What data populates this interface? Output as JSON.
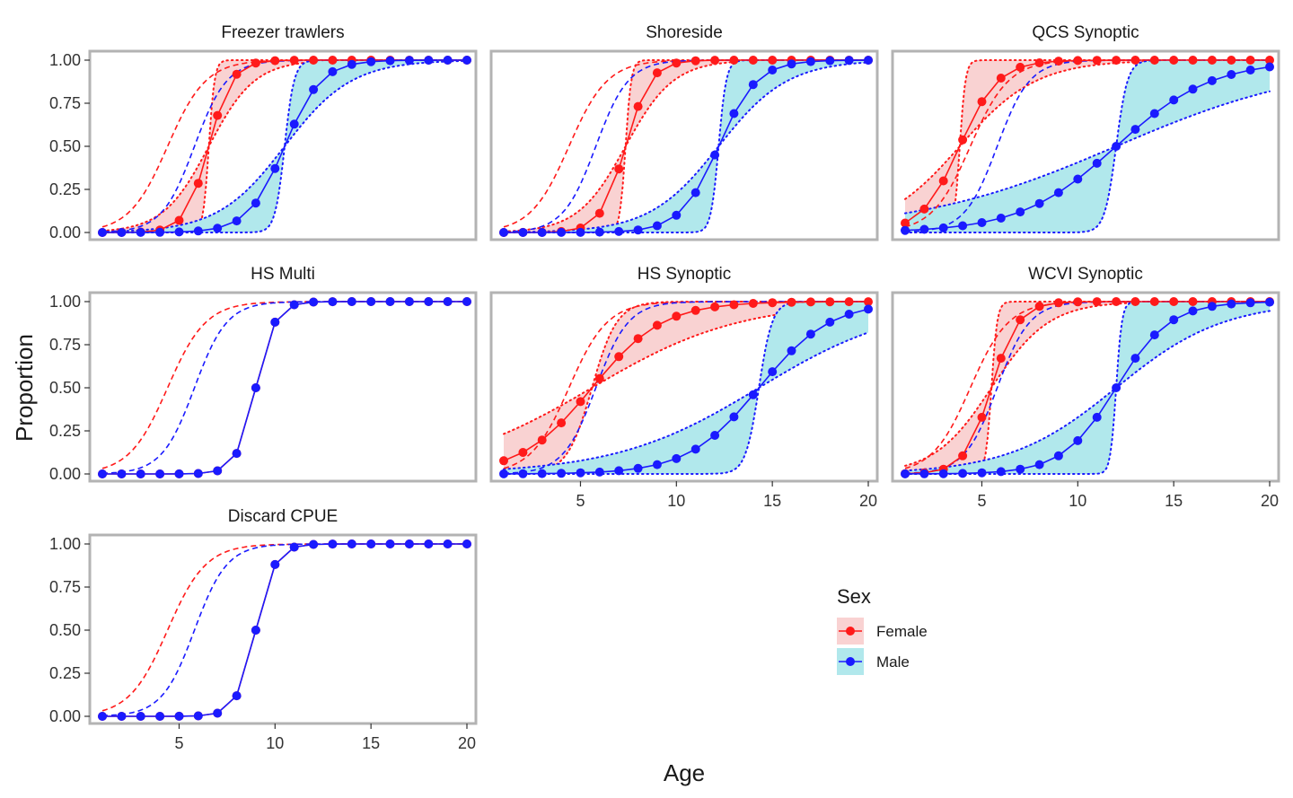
{
  "chart_data": {
    "type": "line",
    "xlabel": "Age",
    "ylabel": "Proportion",
    "xlim": [
      1,
      20
    ],
    "ylim": [
      0,
      1
    ],
    "x_ticks": [
      5,
      10,
      15,
      20
    ],
    "y_ticks": [
      "0.00",
      "0.25",
      "0.50",
      "0.75",
      "1.00"
    ],
    "grid": false,
    "legend": {
      "title": "Sex",
      "placement": "bottom-right",
      "entries": [
        {
          "label": "Female",
          "color": "#ff1a1a",
          "fill": "#f9d2d2"
        },
        {
          "label": "Male",
          "color": "#1a1aff",
          "fill": "#b1e8ec"
        }
      ]
    },
    "reference_maturity_curves": {
      "female": {
        "a50": 4.4,
        "scale": 1.0
      },
      "male": {
        "a50": 5.8,
        "scale": 0.85
      }
    },
    "ages": [
      1,
      2,
      3,
      4,
      5,
      6,
      7,
      8,
      9,
      10,
      11,
      12,
      13,
      14,
      15,
      16,
      17,
      18,
      19,
      20
    ],
    "panels": [
      {
        "title": "Freezer trawlers",
        "female": {
          "a50": 6.55,
          "scale": 0.6,
          "band": [
            0.5,
            0.6
          ]
        },
        "male": {
          "a50": 10.5,
          "scale": 0.95,
          "band": [
            0.7,
            0.8
          ]
        }
      },
      {
        "title": "Shoreside",
        "female": {
          "a50": 7.35,
          "scale": 0.65,
          "band": [
            0.55,
            0.6
          ]
        },
        "male": {
          "a50": 12.2,
          "scale": 1.0,
          "band": [
            0.8,
            0.8
          ]
        }
      },
      {
        "title": "QCS Synoptic",
        "female": {
          "a50": 3.85,
          "scale": 1.0,
          "band": [
            0.9,
            1.0
          ]
        },
        "male": {
          "a50": 12.0,
          "scale": 2.5,
          "band": [
            2.2,
            2.8
          ]
        }
      },
      {
        "title": "HS Multi",
        "female": {
          "a50": 9.0,
          "scale": 0.5,
          "band": [
            0,
            0
          ]
        },
        "male": {
          "a50": 9.0,
          "scale": 0.5,
          "band": [
            0,
            0
          ]
        }
      },
      {
        "title": "HS Synoptic",
        "female": {
          "a50": 5.6,
          "scale": 1.85,
          "band": [
            1.2,
            2.0
          ]
        },
        "male": {
          "a50": 14.3,
          "scale": 1.85,
          "band": [
            1.5,
            1.9
          ]
        }
      },
      {
        "title": "WCVI Synoptic",
        "female": {
          "a50": 5.5,
          "scale": 0.7,
          "band": [
            0.7,
            0.8
          ]
        },
        "male": {
          "a50": 12.0,
          "scale": 1.4,
          "band": [
            1.3,
            1.4
          ]
        }
      },
      {
        "title": "Discard CPUE",
        "female": {
          "a50": 9.0,
          "scale": 0.5,
          "band": [
            0,
            0
          ]
        },
        "male": {
          "a50": 9.0,
          "scale": 0.5,
          "band": [
            0,
            0
          ]
        }
      }
    ]
  }
}
